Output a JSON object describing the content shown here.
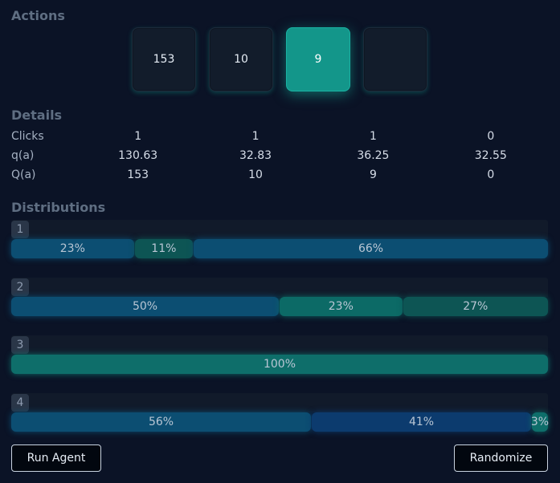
{
  "sections": {
    "actions": "Actions",
    "details": "Details",
    "distributions": "Distributions"
  },
  "actions": [
    {
      "label": "153",
      "active": false
    },
    {
      "label": "10",
      "active": false
    },
    {
      "label": "9",
      "active": true
    },
    {
      "label": "",
      "active": false
    }
  ],
  "details": {
    "rows": [
      {
        "label": "Clicks",
        "values": [
          "1",
          "1",
          "1",
          "0"
        ]
      },
      {
        "label": "q(a)",
        "values": [
          "130.63",
          "32.83",
          "36.25",
          "32.55"
        ]
      },
      {
        "label": "Q(a)",
        "values": [
          "153",
          "10",
          "9",
          "0"
        ]
      }
    ]
  },
  "distributions": [
    {
      "id": "1",
      "segments": [
        {
          "label": "23%",
          "fraction": 0.23,
          "color": "#0c4e72"
        },
        {
          "label": "11%",
          "fraction": 0.11,
          "color": "#0d5554"
        },
        {
          "label": "66%",
          "fraction": 0.66,
          "color": "#0c4e72"
        }
      ]
    },
    {
      "id": "2",
      "segments": [
        {
          "label": "50%",
          "fraction": 0.5,
          "color": "#0c4e72"
        },
        {
          "label": "23%",
          "fraction": 0.23,
          "color": "#0c6a66"
        },
        {
          "label": "27%",
          "fraction": 0.27,
          "color": "#0d5554"
        }
      ]
    },
    {
      "id": "3",
      "segments": [
        {
          "label": "100%",
          "fraction": 1.0,
          "color": "#0e6e6a"
        }
      ]
    },
    {
      "id": "4",
      "segments": [
        {
          "label": "56%",
          "fraction": 0.56,
          "color": "#0c4e72"
        },
        {
          "label": "41%",
          "fraction": 0.41,
          "color": "#0c3b6e"
        },
        {
          "label": "3%",
          "fraction": 0.03,
          "color": "#0e6e6a"
        }
      ]
    }
  ],
  "buttons": {
    "run_agent": "Run Agent",
    "randomize": "Randomize"
  }
}
